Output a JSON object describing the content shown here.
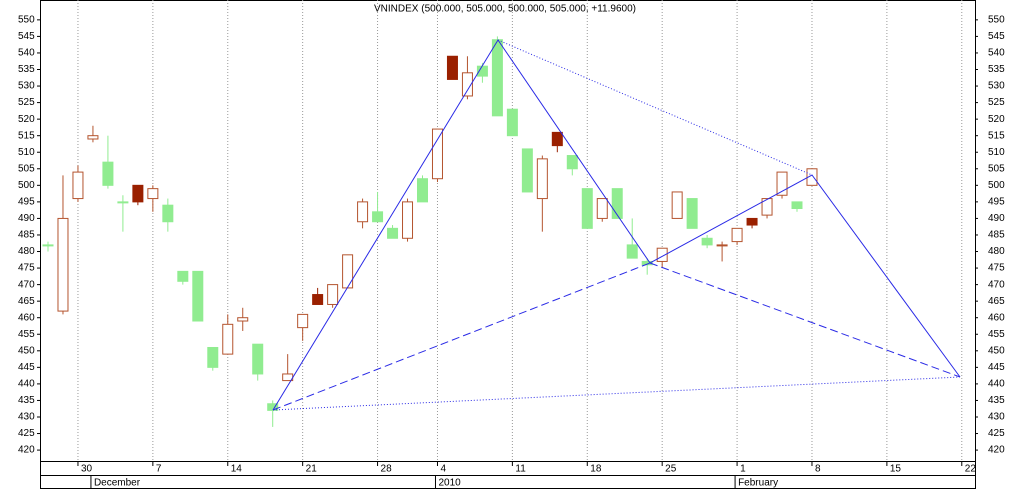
{
  "chart_data": {
    "type": "candlestick",
    "title": "VNINDEX (500.000, 505.000, 500.000, 505.000, +11.9600)",
    "categories": [
      null,
      null,
      "30",
      null,
      null,
      null,
      null,
      "7",
      null,
      null,
      null,
      null,
      "14",
      null,
      null,
      null,
      null,
      "21",
      null,
      null,
      null,
      null,
      "28",
      null,
      null,
      null,
      "4",
      null,
      null,
      null,
      null,
      "11",
      null,
      null,
      null,
      null,
      "18",
      null,
      null,
      null,
      null,
      "25",
      null,
      null,
      null,
      null,
      "1",
      null,
      null,
      null,
      null,
      "8",
      null,
      null,
      null,
      null,
      "15",
      null,
      null,
      null,
      null,
      "22"
    ],
    "period_labels": [
      null,
      null,
      null,
      "December",
      null,
      null,
      null,
      null,
      null,
      null,
      null,
      null,
      null,
      null,
      null,
      null,
      null,
      null,
      null,
      null,
      null,
      null,
      null,
      null,
      null,
      null,
      "2010",
      null,
      null,
      null,
      null,
      null,
      null,
      null,
      null,
      null,
      null,
      null,
      null,
      null,
      null,
      null,
      null,
      null,
      null,
      null,
      "February",
      null,
      null,
      null,
      null,
      null,
      null,
      null,
      null,
      null,
      null,
      null,
      null,
      null,
      null,
      null
    ],
    "open": [
      482,
      462,
      496,
      514,
      507,
      495,
      500,
      496,
      494,
      474,
      474,
      451,
      449,
      459,
      452,
      434,
      441,
      457,
      467,
      464,
      469,
      489,
      492,
      487,
      484,
      502,
      502,
      539,
      527,
      536,
      544,
      523,
      511,
      496,
      516,
      509,
      499,
      490,
      499,
      482,
      477,
      477,
      490,
      496,
      484,
      482,
      483,
      490,
      491,
      497,
      495,
      500,
      null,
      null,
      null,
      null,
      null,
      null,
      null,
      null,
      null,
      null
    ],
    "high": [
      483,
      503,
      506,
      518,
      515,
      497,
      500,
      500,
      496,
      474,
      474,
      451,
      461,
      463,
      452,
      435,
      449,
      461,
      469,
      470,
      479,
      496,
      498,
      488,
      496,
      503,
      517,
      539,
      539,
      537,
      545,
      523,
      511,
      509,
      516,
      509,
      499,
      496,
      499,
      490,
      478,
      481,
      498,
      496,
      485,
      483,
      487,
      490,
      496,
      504,
      495,
      505,
      null,
      null,
      null,
      null,
      null,
      null,
      null,
      null,
      null,
      null
    ],
    "low": [
      480,
      461,
      495,
      513,
      499,
      486,
      494,
      492,
      486,
      470,
      459,
      444,
      449,
      456,
      441,
      427,
      441,
      453,
      464,
      463,
      469,
      487,
      489,
      484,
      483,
      495,
      501,
      532,
      526,
      531,
      521,
      515,
      498,
      486,
      510,
      503,
      487,
      489,
      490,
      478,
      473,
      475,
      490,
      487,
      481,
      477,
      482,
      487,
      490,
      496,
      492,
      500,
      null,
      null,
      null,
      null,
      null,
      null,
      null,
      null,
      null,
      null
    ],
    "close": [
      482,
      490,
      504,
      515,
      500,
      495,
      495,
      499,
      489,
      471,
      459,
      445,
      458,
      460,
      443,
      432,
      443,
      461,
      464,
      470,
      479,
      495,
      489,
      484,
      495,
      495,
      517,
      532,
      534,
      533,
      521,
      515,
      498,
      508,
      512,
      505,
      487,
      496,
      490,
      478,
      476,
      481,
      498,
      487,
      482,
      482,
      487,
      488,
      496,
      504,
      493,
      505,
      null,
      null,
      null,
      null,
      null,
      null,
      null,
      null,
      null,
      null
    ],
    "colors": [
      "#90ec90",
      "#b4542e",
      "#b4542e",
      "#b4542e",
      "#90ec90",
      "#90ec90",
      "#9a2000",
      "#b4542e",
      "#90ec90",
      "#90ec90",
      "#90ec90",
      "#90ec90",
      "#b4542e",
      "#b4542e",
      "#90ec90",
      "#90ec90",
      "#b4542e",
      "#b4542e",
      "#9a2000",
      "#b4542e",
      "#b4542e",
      "#b4542e",
      "#90ec90",
      "#90ec90",
      "#b4542e",
      "#90ec90",
      "#b4542e",
      "#9a2000",
      "#b4542e",
      "#90ec90",
      "#90ec90",
      "#90ec90",
      "#90ec90",
      "#b4542e",
      "#9a2000",
      "#90ec90",
      "#90ec90",
      "#b4542e",
      "#90ec90",
      "#90ec90",
      "#90ec90",
      "#b4542e",
      "#b4542e",
      "#90ec90",
      "#90ec90",
      "#b4542e",
      "#b4542e",
      "#9a2000",
      "#b4542e",
      "#b4542e",
      "#90ec90",
      "#b4542e",
      null,
      null,
      null,
      null,
      null,
      null,
      null,
      null,
      null,
      null
    ],
    "ylim": [
      416.4,
      556
    ],
    "yticks": [
      420,
      425,
      430,
      435,
      440,
      445,
      450,
      455,
      460,
      465,
      470,
      475,
      480,
      485,
      490,
      495,
      500,
      505,
      510,
      515,
      520,
      525,
      530,
      535,
      540,
      545,
      550
    ],
    "grid": "x"
  }
}
